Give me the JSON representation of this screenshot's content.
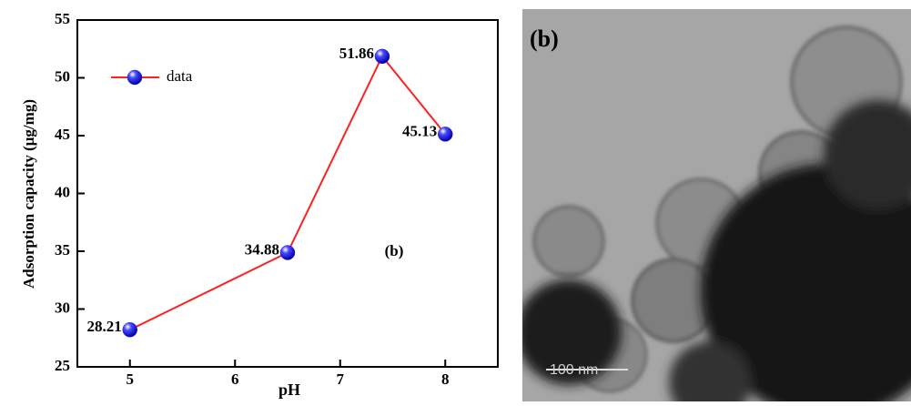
{
  "chart_data": {
    "type": "line",
    "x_label": "pH",
    "y_label": "Adsorption capacity (μg/mg)",
    "annotation": "(b)",
    "x": [
      5,
      6.5,
      7.4,
      8
    ],
    "series": [
      {
        "name": "data",
        "color": "#ff2020",
        "marker_color": "#1a1aff",
        "values": [
          28.21,
          34.88,
          51.86,
          45.13
        ]
      }
    ],
    "xlim": [
      4.5,
      8.5
    ],
    "xticks": [
      5,
      6,
      7,
      8
    ],
    "ylim": [
      25,
      55
    ],
    "yticks": [
      25,
      30,
      35,
      40,
      45,
      50,
      55
    ],
    "grid": false,
    "legend": "upper left",
    "show_value_labels": true
  },
  "image": {
    "label": "(b)",
    "scale_bar": "100 nm"
  }
}
